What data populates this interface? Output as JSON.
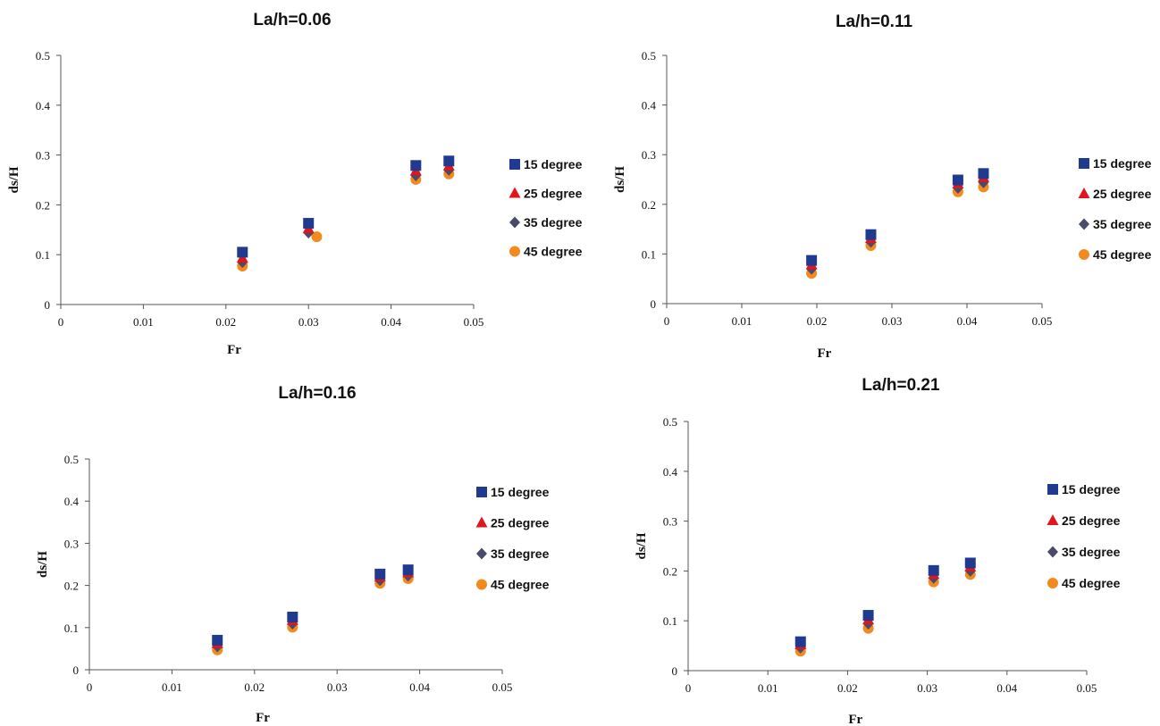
{
  "colors": {
    "s15": "#1f3a8f",
    "s25": "#e0151d",
    "s35": "#4a4a6a",
    "s45": "#f28a1e"
  },
  "marker_shapes": [
    "square",
    "triangle",
    "diamond",
    "circle"
  ],
  "chart_data": [
    {
      "type": "scatter",
      "title": "La/h=0.06",
      "xlabel": "Fr",
      "ylabel": "ds/H",
      "xlim": [
        0,
        0.05
      ],
      "ylim": [
        0,
        0.5
      ],
      "xticks": [
        "0",
        "0.01",
        "0.02",
        "0.03",
        "0.04",
        "0.05"
      ],
      "yticks": [
        "0",
        "0.1",
        "0.2",
        "0.3",
        "0.4",
        "0.5"
      ],
      "grid": false,
      "legend_position": "right",
      "series": [
        {
          "name": "15 degree",
          "points": [
            [
              0.022,
              0.105
            ],
            [
              0.03,
              0.163
            ],
            [
              0.043,
              0.279
            ],
            [
              0.047,
              0.288
            ]
          ]
        },
        {
          "name": "25 degree",
          "points": [
            [
              0.022,
              0.093
            ],
            [
              0.03,
              0.152
            ],
            [
              0.043,
              0.268
            ],
            [
              0.047,
              0.278
            ]
          ]
        },
        {
          "name": "35 degree",
          "points": [
            [
              0.022,
              0.085
            ],
            [
              0.03,
              0.144
            ],
            [
              0.043,
              0.259
            ],
            [
              0.047,
              0.27
            ]
          ]
        },
        {
          "name": "45 degree",
          "points": [
            [
              0.022,
              0.077
            ],
            [
              0.031,
              0.136
            ],
            [
              0.043,
              0.251
            ],
            [
              0.047,
              0.262
            ]
          ]
        }
      ]
    },
    {
      "type": "scatter",
      "title": "La/h=0.11",
      "xlabel": "Fr",
      "ylabel": "ds/H",
      "xlim": [
        0,
        0.05
      ],
      "ylim": [
        0,
        0.5
      ],
      "xticks": [
        "0",
        "0.01",
        "0.02",
        "0.03",
        "0.04",
        "0.05"
      ],
      "yticks": [
        "0",
        "0.1",
        "0.2",
        "0.3",
        "0.4",
        "0.5"
      ],
      "grid": false,
      "legend_position": "right",
      "series": [
        {
          "name": "15 degree",
          "points": [
            [
              0.0193,
              0.087
            ],
            [
              0.0272,
              0.139
            ],
            [
              0.0388,
              0.249
            ],
            [
              0.0422,
              0.262
            ]
          ]
        },
        {
          "name": "25 degree",
          "points": [
            [
              0.0193,
              0.078
            ],
            [
              0.0272,
              0.131
            ],
            [
              0.0388,
              0.241
            ],
            [
              0.0422,
              0.254
            ]
          ]
        },
        {
          "name": "35 degree",
          "points": [
            [
              0.0193,
              0.07
            ],
            [
              0.0272,
              0.124
            ],
            [
              0.0388,
              0.233
            ],
            [
              0.0422,
              0.244
            ]
          ]
        },
        {
          "name": "45 degree",
          "points": [
            [
              0.0193,
              0.061
            ],
            [
              0.0272,
              0.117
            ],
            [
              0.0388,
              0.225
            ],
            [
              0.0422,
              0.235
            ]
          ]
        }
      ]
    },
    {
      "type": "scatter",
      "title": "La/h=0.16",
      "xlabel": "Fr",
      "ylabel": "ds/H",
      "xlim": [
        0,
        0.05
      ],
      "ylim": [
        0,
        0.5
      ],
      "xticks": [
        "0",
        "0.01",
        "0.02",
        "0.03",
        "0.04",
        "0.05"
      ],
      "yticks": [
        "0",
        "0.1",
        "0.2",
        "0.3",
        "0.4",
        "0.5"
      ],
      "grid": false,
      "legend_position": "right",
      "series": [
        {
          "name": "15 degree",
          "points": [
            [
              0.0155,
              0.07
            ],
            [
              0.0246,
              0.125
            ],
            [
              0.0352,
              0.227
            ],
            [
              0.0386,
              0.237
            ]
          ]
        },
        {
          "name": "25 degree",
          "points": [
            [
              0.0155,
              0.062
            ],
            [
              0.0246,
              0.117
            ],
            [
              0.0352,
              0.22
            ],
            [
              0.0386,
              0.23
            ]
          ]
        },
        {
          "name": "35 degree",
          "points": [
            [
              0.0155,
              0.055
            ],
            [
              0.0246,
              0.109
            ],
            [
              0.0352,
              0.212
            ],
            [
              0.0386,
              0.223
            ]
          ]
        },
        {
          "name": "45 degree",
          "points": [
            [
              0.0155,
              0.047
            ],
            [
              0.0246,
              0.101
            ],
            [
              0.0352,
              0.205
            ],
            [
              0.0386,
              0.216
            ]
          ]
        }
      ]
    },
    {
      "type": "scatter",
      "title": "La/h=0.21",
      "xlabel": "Fr",
      "ylabel": "ds/H",
      "xlim": [
        0,
        0.05
      ],
      "ylim": [
        0,
        0.5
      ],
      "xticks": [
        "0",
        "0.01",
        "0.02",
        "0.03",
        "0.04",
        "0.05"
      ],
      "yticks": [
        "0",
        "0.1",
        "0.2",
        "0.3",
        "0.4",
        "0.5"
      ],
      "grid": false,
      "legend_position": "right",
      "series": [
        {
          "name": "15 degree",
          "points": [
            [
              0.0141,
              0.058
            ],
            [
              0.0226,
              0.111
            ],
            [
              0.0308,
              0.201
            ],
            [
              0.0354,
              0.216
            ]
          ]
        },
        {
          "name": "25 degree",
          "points": [
            [
              0.0141,
              0.052
            ],
            [
              0.0226,
              0.102
            ],
            [
              0.0308,
              0.193
            ],
            [
              0.0354,
              0.208
            ]
          ]
        },
        {
          "name": "35 degree",
          "points": [
            [
              0.0141,
              0.046
            ],
            [
              0.0226,
              0.094
            ],
            [
              0.0308,
              0.186
            ],
            [
              0.0354,
              0.2
            ]
          ]
        },
        {
          "name": "45 degree",
          "points": [
            [
              0.0141,
              0.039
            ],
            [
              0.0226,
              0.085
            ],
            [
              0.0308,
              0.178
            ],
            [
              0.0354,
              0.193
            ]
          ]
        }
      ]
    }
  ]
}
